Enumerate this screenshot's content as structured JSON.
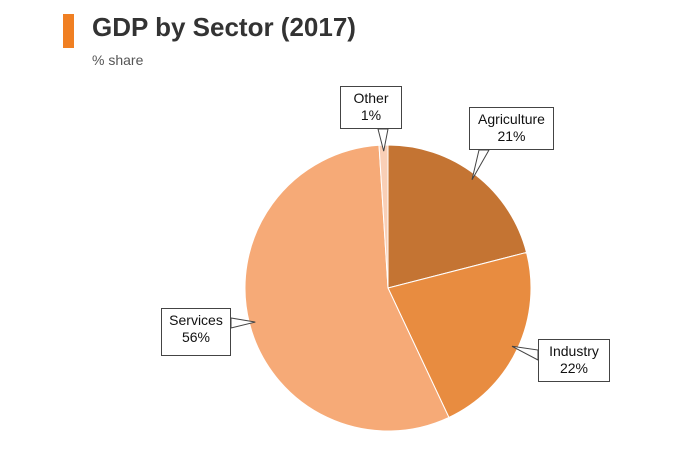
{
  "header": {
    "title": "GDP by Sector (2017)",
    "subtitle": "% share",
    "accent_color": "#f07f22"
  },
  "chart_data": {
    "type": "pie",
    "title": "GDP by Sector (2017)",
    "subtitle": "% share",
    "start": "12 o'clock",
    "direction": "clockwise",
    "slices": [
      {
        "label": "Agriculture",
        "value": 21,
        "value_label": "21%",
        "color": "#c47433"
      },
      {
        "label": "Industry",
        "value": 22,
        "value_label": "22%",
        "color": "#e88c40"
      },
      {
        "label": "Services",
        "value": 56,
        "value_label": "56%",
        "color": "#f6aa77"
      },
      {
        "label": "Other",
        "value": 1,
        "value_label": "1%",
        "color": "#f9cfb6"
      }
    ]
  }
}
